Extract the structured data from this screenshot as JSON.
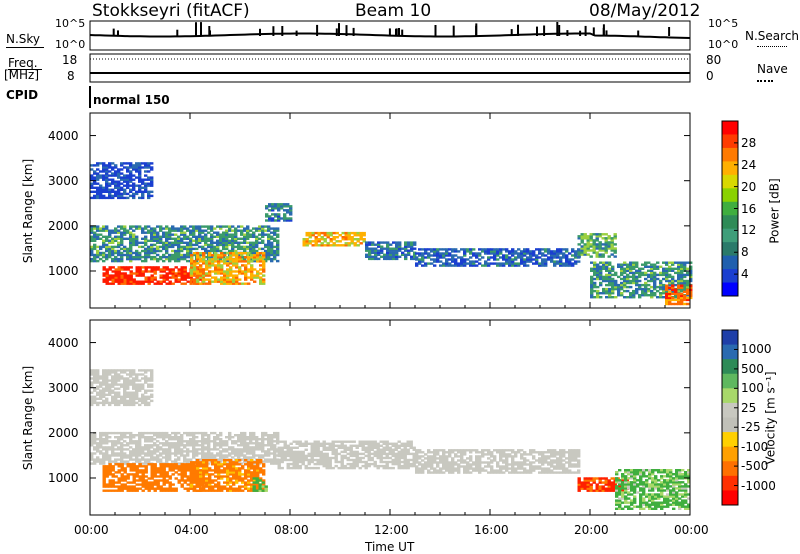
{
  "header": {
    "station": "Stokkseyri (fitACF)",
    "beam": "Beam 10",
    "date": "08/May/2012"
  },
  "top_panels": {
    "nsky_label": "N.Sky",
    "nsky_ticks": [
      "10^5",
      "10^0"
    ],
    "nsearch_label": "N.Search",
    "nsearch_ticks": [
      "10^5",
      "10^0"
    ],
    "freq_label": "Freq.",
    "freq_unit": "[MHz]",
    "freq_ticks": [
      "18",
      "8"
    ],
    "nave_label": "Nave",
    "nave_ticks": [
      "80",
      "0"
    ],
    "cpid_label": "CPID",
    "cpid_value": "normal 150"
  },
  "colorbars": {
    "power": {
      "label": "Power [dB]",
      "ticks": [
        "28",
        "24",
        "20",
        "16",
        "12",
        "8",
        "4"
      ],
      "colors": [
        "#ff0000",
        "#ff3b00",
        "#ff7a00",
        "#ffb000",
        "#d8d800",
        "#8ad200",
        "#3fae3f",
        "#2e8b57",
        "#3f9e7a",
        "#2a7a6a",
        "#1f5fae",
        "#1a3fd0",
        "#0000ff"
      ]
    },
    "velocity": {
      "label": "Velocity [m s⁻¹]",
      "ticks": [
        "1000",
        "500",
        "100",
        "25",
        "-25",
        "-100",
        "-500",
        "-1000"
      ],
      "colors": [
        "#1f3fa8",
        "#2a6ab0",
        "#2e8b57",
        "#5fb85f",
        "#a8d86a",
        "#c8c8c0",
        "#c0c0b8",
        "#ffd000",
        "#ffa000",
        "#ff7000",
        "#ff3000",
        "#ff0000"
      ]
    }
  },
  "chart_data": {
    "type": "heatmap",
    "xlabel": "Time UT",
    "ylabel": "Slant Range [km]",
    "x_ticks": [
      "00:00",
      "04:00",
      "08:00",
      "12:00",
      "16:00",
      "20:00",
      "00:00"
    ],
    "y_ticks": [
      1000,
      2000,
      3000,
      4000
    ],
    "xlim_hours": [
      0,
      24
    ],
    "ylim_km": [
      180,
      4500
    ],
    "panels": [
      {
        "name": "power",
        "units": "dB",
        "regions": [
          {
            "t": [
              0.0,
              2.5
            ],
            "r": [
              2600,
              3400
            ],
            "level": 6
          },
          {
            "t": [
              0.0,
              7.5
            ],
            "r": [
              1200,
              2000
            ],
            "level": 12
          },
          {
            "t": [
              0.5,
              4.5
            ],
            "r": [
              700,
              1100
            ],
            "level": 28
          },
          {
            "t": [
              4.0,
              7.0
            ],
            "r": [
              700,
              1400
            ],
            "level": 20
          },
          {
            "t": [
              7.0,
              8.0
            ],
            "r": [
              2100,
              2500
            ],
            "level": 10
          },
          {
            "t": [
              8.5,
              11.0
            ],
            "r": [
              1550,
              1850
            ],
            "level": 20
          },
          {
            "t": [
              11.0,
              13.0
            ],
            "r": [
              1250,
              1650
            ],
            "level": 10
          },
          {
            "t": [
              13.0,
              19.5
            ],
            "r": [
              1100,
              1500
            ],
            "level": 8
          },
          {
            "t": [
              19.5,
              21.0
            ],
            "r": [
              1300,
              1800
            ],
            "level": 14
          },
          {
            "t": [
              20.0,
              24.0
            ],
            "r": [
              400,
              1200
            ],
            "level": 12
          },
          {
            "t": [
              23.0,
              24.0
            ],
            "r": [
              250,
              700
            ],
            "level": 24
          }
        ]
      },
      {
        "name": "velocity",
        "units": "m/s",
        "regions": [
          {
            "t": [
              0.0,
              2.5
            ],
            "r": [
              2600,
              3400
            ],
            "level": 0
          },
          {
            "t": [
              0.0,
              7.5
            ],
            "r": [
              1300,
              2000
            ],
            "level": 0
          },
          {
            "t": [
              0.5,
              4.5
            ],
            "r": [
              700,
              1300
            ],
            "level": -300
          },
          {
            "t": [
              4.0,
              7.0
            ],
            "r": [
              700,
              1400
            ],
            "level": -200
          },
          {
            "t": [
              6.5,
              7.0
            ],
            "r": [
              700,
              1000
            ],
            "level": 200
          },
          {
            "t": [
              7.5,
              13.0
            ],
            "r": [
              1200,
              1800
            ],
            "level": 0
          },
          {
            "t": [
              13.0,
              19.5
            ],
            "r": [
              1100,
              1600
            ],
            "level": 0
          },
          {
            "t": [
              19.5,
              21.5
            ],
            "r": [
              700,
              1000
            ],
            "level": -600
          },
          {
            "t": [
              21.0,
              24.0
            ],
            "r": [
              300,
              1200
            ],
            "level": 150
          }
        ]
      }
    ],
    "grid": false
  }
}
